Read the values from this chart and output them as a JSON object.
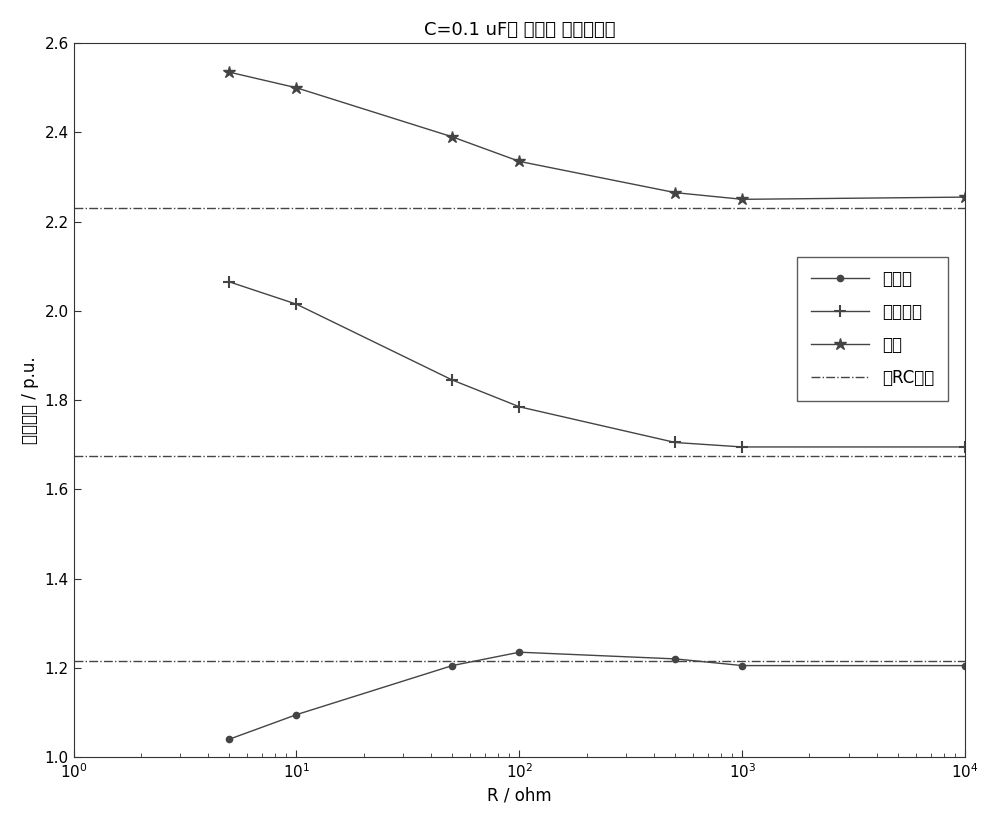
{
  "title": "C=0.1 uF， 串联， 接变压器端",
  "xlabel": "R / ohm",
  "ylabel": "电压峰値 / p.u.",
  "x_values": [
    5,
    10,
    50,
    100,
    500,
    1000,
    10000
  ],
  "transformer_y": [
    1.04,
    1.095,
    1.205,
    1.235,
    1.22,
    1.205,
    1.205
  ],
  "isolator_y": [
    2.065,
    2.015,
    1.845,
    1.785,
    1.705,
    1.695,
    1.695
  ],
  "busbar_y": [
    2.535,
    2.5,
    2.39,
    2.335,
    2.265,
    2.25,
    2.255
  ],
  "no_rc_transformer": 1.215,
  "no_rc_isolator": 1.675,
  "no_rc_busbar": 2.23,
  "xlim": [
    1,
    10000
  ],
  "ylim": [
    1.0,
    2.6
  ],
  "yticks": [
    1.0,
    1.2,
    1.4,
    1.6,
    1.8,
    2.0,
    2.2,
    2.4,
    2.6
  ],
  "line_color": "#444444",
  "background_color": "#ffffff",
  "legend_labels": [
    "变压器",
    "隔离开关",
    "母线",
    "无RC支路"
  ],
  "title_fontsize": 13,
  "label_fontsize": 12,
  "tick_fontsize": 11,
  "legend_fontsize": 12
}
